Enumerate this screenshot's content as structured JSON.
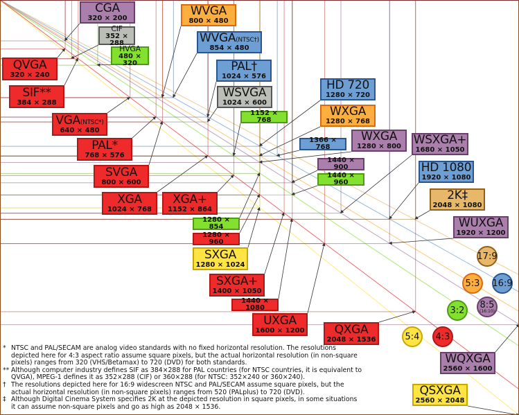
{
  "aspect_colors": {
    "4:3": {
      "fill": "#ee2a2a",
      "border": "#b01818"
    },
    "16:10": {
      "fill": "#ab7fab",
      "border": "#6b3f6b"
    },
    "5:3": {
      "fill": "#fdae40",
      "border": "#d96a10"
    },
    "16:9": {
      "fill": "#6e9fd4",
      "border": "#2a5590"
    },
    "3:2": {
      "fill": "#84e02e",
      "border": "#4f9a18"
    },
    "5:4": {
      "fill": "#ffe443",
      "border": "#c8a800"
    },
    "17:9": {
      "fill": "#e8b86a",
      "border": "#93601a"
    },
    "other": {
      "fill": "#bbbdb7",
      "border": "#55575a"
    }
  },
  "resolutions": [
    {
      "name": "CGA",
      "suffix": "",
      "res": "320 × 200",
      "w": 320,
      "h": 200,
      "aspect": "16:10"
    },
    {
      "name": "CIF",
      "suffix": "",
      "res": "352 × 288",
      "w": 352,
      "h": 288,
      "aspect": "other"
    },
    {
      "name": "HVGA",
      "suffix": "",
      "res": "480 × 320",
      "w": 480,
      "h": 320,
      "aspect": "3:2"
    },
    {
      "name": "WVGA",
      "suffix": "",
      "res": "800 × 480",
      "w": 800,
      "h": 480,
      "aspect": "5:3"
    },
    {
      "name": "WVGA",
      "suffix": "(NTSC†)",
      "res": "854 × 480",
      "w": 854,
      "h": 480,
      "aspect": "16:9"
    },
    {
      "name": "PAL†",
      "suffix": "",
      "res": "1024 × 576",
      "w": 1024,
      "h": 576,
      "aspect": "16:9"
    },
    {
      "name": "WSVGA",
      "suffix": "",
      "res": "1024 × 600",
      "w": 1024,
      "h": 600,
      "aspect": "other"
    },
    {
      "name": "",
      "suffix": "",
      "res": "1152 × 768",
      "w": 1152,
      "h": 768,
      "aspect": "3:2"
    },
    {
      "name": "QVGA",
      "suffix": "",
      "res": "320 × 240",
      "w": 320,
      "h": 240,
      "aspect": "4:3"
    },
    {
      "name": "SIF**",
      "suffix": "",
      "res": "384 × 288",
      "w": 384,
      "h": 288,
      "aspect": "4:3"
    },
    {
      "name": "VGA",
      "suffix": "(NTSC*)",
      "res": "640 × 480",
      "w": 640,
      "h": 480,
      "aspect": "4:3"
    },
    {
      "name": "PAL*",
      "suffix": "",
      "res": "768 × 576",
      "w": 768,
      "h": 576,
      "aspect": "4:3"
    },
    {
      "name": "SVGA",
      "suffix": "",
      "res": "800 × 600",
      "w": 800,
      "h": 600,
      "aspect": "4:3"
    },
    {
      "name": "XGA",
      "suffix": "",
      "res": "1024 × 768",
      "w": 1024,
      "h": 768,
      "aspect": "4:3"
    },
    {
      "name": "XGA+",
      "suffix": "",
      "res": "1152 × 864",
      "w": 1152,
      "h": 864,
      "aspect": "4:3"
    },
    {
      "name": "HD 720",
      "suffix": "",
      "res": "1280 × 720",
      "w": 1280,
      "h": 720,
      "aspect": "16:9"
    },
    {
      "name": "WXGA",
      "suffix": "",
      "res": "1280 × 768",
      "w": 1280,
      "h": 768,
      "aspect": "5:3"
    },
    {
      "name": "",
      "suffix": "",
      "res": "1366 × 768",
      "w": 1366,
      "h": 768,
      "aspect": "16:9"
    },
    {
      "name": "WXGA",
      "suffix": "",
      "res": "1280 × 800",
      "w": 1280,
      "h": 800,
      "aspect": "16:10"
    },
    {
      "name": "WSXGA+",
      "suffix": "",
      "res": "1680 × 1050",
      "w": 1680,
      "h": 1050,
      "aspect": "16:10"
    },
    {
      "name": "",
      "suffix": "",
      "res": "1440 × 900",
      "w": 1440,
      "h": 900,
      "aspect": "16:10"
    },
    {
      "name": "",
      "suffix": "",
      "res": "1440 × 960",
      "w": 1440,
      "h": 960,
      "aspect": "3:2"
    },
    {
      "name": "HD 1080",
      "suffix": "",
      "res": "1920 × 1080",
      "w": 1920,
      "h": 1080,
      "aspect": "16:9"
    },
    {
      "name": "2K‡",
      "suffix": "",
      "res": "2048 × 1080",
      "w": 2048,
      "h": 1080,
      "aspect": "17:9"
    },
    {
      "name": "WUXGA",
      "suffix": "",
      "res": "1920 × 1200",
      "w": 1920,
      "h": 1200,
      "aspect": "16:10"
    },
    {
      "name": "",
      "suffix": "",
      "res": "1280 × 854",
      "w": 1280,
      "h": 854,
      "aspect": "3:2"
    },
    {
      "name": "",
      "suffix": "",
      "res": "1280 × 960",
      "w": 1280,
      "h": 960,
      "aspect": "4:3"
    },
    {
      "name": "SXGA",
      "suffix": "",
      "res": "1280 × 1024",
      "w": 1280,
      "h": 1024,
      "aspect": "5:4"
    },
    {
      "name": "SXGA+",
      "suffix": "",
      "res": "1400 × 1050",
      "w": 1400,
      "h": 1050,
      "aspect": "4:3"
    },
    {
      "name": "",
      "suffix": "",
      "res": "1440 × 1080",
      "w": 1440,
      "h": 1080,
      "aspect": "4:3"
    },
    {
      "name": "UXGA",
      "suffix": "",
      "res": "1600 × 1200",
      "w": 1600,
      "h": 1200,
      "aspect": "4:3"
    },
    {
      "name": "QXGA",
      "suffix": "",
      "res": "2048 × 1536",
      "w": 2048,
      "h": 1536,
      "aspect": "4:3"
    },
    {
      "name": "WQXGA",
      "suffix": "",
      "res": "2560 × 1600",
      "w": 2560,
      "h": 1600,
      "aspect": "16:10"
    },
    {
      "name": "QSXGA",
      "suffix": "",
      "res": "2560 × 2048",
      "w": 2560,
      "h": 2048,
      "aspect": "5:4"
    }
  ],
  "aspect_ratios": [
    {
      "label": "17:9",
      "sub": "",
      "key": "17:9",
      "rw": 17,
      "rh": 9
    },
    {
      "label": "5:3",
      "sub": "",
      "key": "5:3",
      "rw": 5,
      "rh": 3
    },
    {
      "label": "16:9",
      "sub": "",
      "key": "16:9",
      "rw": 16,
      "rh": 9
    },
    {
      "label": "3:2",
      "sub": "",
      "key": "3:2",
      "rw": 3,
      "rh": 2
    },
    {
      "label": "8:5",
      "sub": "(16:10)",
      "key": "16:10",
      "rw": 8,
      "rh": 5
    },
    {
      "label": "5:4",
      "sub": "",
      "key": "5:4",
      "rw": 5,
      "rh": 4
    },
    {
      "label": "4:3",
      "sub": "",
      "key": "4:3",
      "rw": 4,
      "rh": 3
    }
  ],
  "footnotes": [
    {
      "mark": "*",
      "text": "NTSC and PAL/SECAM are analog video standards with no fixed horizontal resolution. The resolutions depicted here for 4:3 aspect ratio assume square pixels, but the actual horizontal resolution (in non-square pixels) ranges from 320 (VHS/Betamax) to 720 (DVD) for both standards."
    },
    {
      "mark": "**",
      "text": "Although computer industry defines SIF as 384×288 for PAL countries (for NTSC countries, it is equivalent to QVGA), MPEG-1 defines it as 352×288 (CIF) or 360×288 (for NTSC: 352×240 or 360×240)."
    },
    {
      "mark": "†",
      "text": "The resolutions depicted here for 16:9 widescreen NTSC and PAL/SECAM assume square pixels, but the actual horizontal resolution (in non-square pixels) ranges from 520 (PALplus) to 720 (DVD)."
    },
    {
      "mark": "‡",
      "text": "Although Digital Cinema System specifies 2K at the depicted resolution in square pixels, in some situations it can assume non-square pixels and go as high as 2048 × 1536."
    }
  ]
}
